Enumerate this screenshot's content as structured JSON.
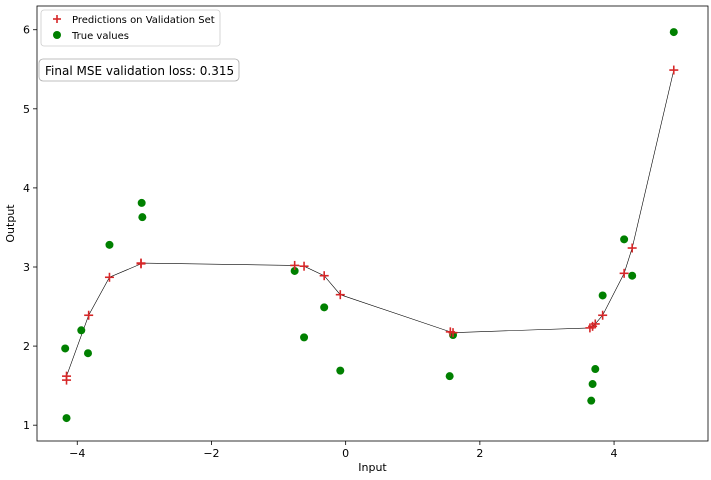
{
  "chart_data": {
    "type": "scatter",
    "title": "",
    "xlabel": "Input",
    "ylabel": "Output",
    "xlim": [
      -4.6,
      5.4
    ],
    "ylim": [
      0.8,
      6.3
    ],
    "xticks": [
      -4,
      -2,
      0,
      2,
      4
    ],
    "yticks": [
      1,
      2,
      3,
      4,
      5,
      6
    ],
    "xtick_labels": [
      "−4",
      "−2",
      "0",
      "2",
      "4"
    ],
    "ytick_labels": [
      "1",
      "2",
      "3",
      "4",
      "5",
      "6"
    ],
    "grid": false,
    "legend_position": "top-left",
    "annotation": "Final MSE validation loss: 0.315",
    "series": [
      {
        "name": "Predictions on Validation Set",
        "marker": "plus",
        "color": "#d62728",
        "line_color": "#000000",
        "x": [
          -4.16,
          -4.16,
          -3.83,
          -3.52,
          -3.05,
          -3.05,
          -0.76,
          -0.62,
          -0.32,
          -0.08,
          1.56,
          1.6,
          3.64,
          3.68,
          3.72,
          3.83,
          4.15,
          4.27,
          4.89
        ],
        "y": [
          1.57,
          1.62,
          2.39,
          2.87,
          3.04,
          3.05,
          3.02,
          3.01,
          2.89,
          2.65,
          2.18,
          2.17,
          2.23,
          2.25,
          2.28,
          2.39,
          2.92,
          3.24,
          5.49
        ]
      },
      {
        "name": "True values",
        "marker": "circle",
        "color": "#008000",
        "x": [
          -4.18,
          -4.16,
          -3.94,
          -3.84,
          -3.52,
          -3.04,
          -3.03,
          -0.76,
          -0.62,
          -0.32,
          -0.08,
          1.55,
          1.6,
          3.66,
          3.68,
          3.72,
          3.83,
          4.15,
          4.27,
          4.89
        ],
        "y": [
          1.97,
          1.09,
          2.2,
          1.91,
          3.28,
          3.81,
          3.63,
          2.95,
          2.11,
          2.49,
          1.69,
          1.62,
          2.14,
          1.31,
          1.52,
          1.71,
          2.64,
          3.35,
          2.89,
          5.97
        ]
      }
    ]
  }
}
